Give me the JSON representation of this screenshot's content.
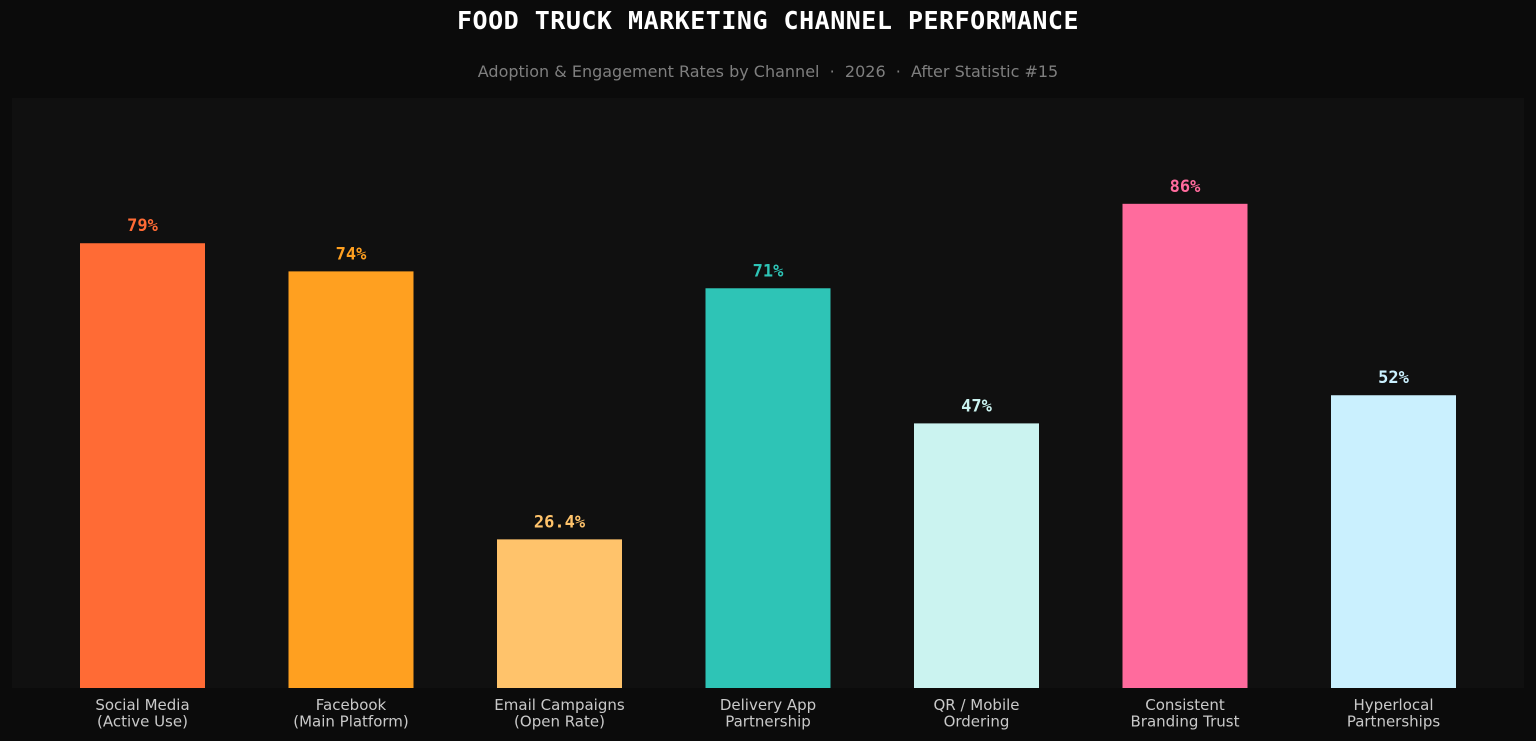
{
  "chart_data": {
    "type": "bar",
    "title": "FOOD TRUCK MARKETING CHANNEL PERFORMANCE",
    "subtitle": "Adoption & Engagement Rates by Channel  ·  2026  ·  After Statistic #15",
    "xlabel": "",
    "ylabel": "",
    "ylim": [
      0,
      100
    ],
    "grid": false,
    "categories": [
      [
        "Social Media",
        "(Active Use)"
      ],
      [
        "Facebook",
        "(Main Platform)"
      ],
      [
        "Email Campaigns",
        "(Open Rate)"
      ],
      [
        "Delivery App",
        "Partnership"
      ],
      [
        "QR / Mobile",
        "Ordering"
      ],
      [
        "Consistent",
        "Branding Trust"
      ],
      [
        "Hyperlocal",
        "Partnerships"
      ]
    ],
    "values": [
      79,
      74,
      26.4,
      71,
      47,
      86,
      52
    ],
    "value_labels": [
      "79%",
      "74%",
      "26.4%",
      "71%",
      "47%",
      "86%",
      "52%"
    ],
    "colors": [
      "#ff6b35",
      "#ffa020",
      "#ffc36b",
      "#2ec4b6",
      "#cbf3f0",
      "#ff6b9d",
      "#caf0fe"
    ]
  }
}
